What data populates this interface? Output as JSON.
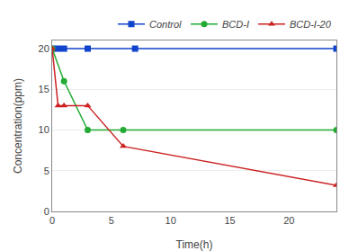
{
  "chart_data": {
    "type": "line",
    "xlabel": "Time(h)",
    "ylabel": "Concentration(ppm)",
    "xlim": [
      0,
      24
    ],
    "ylim": [
      0,
      21
    ],
    "xticks": [
      0,
      5,
      10,
      15,
      20
    ],
    "yticks": [
      0,
      5,
      10,
      15,
      20
    ],
    "grid": "y",
    "legend": "upper right",
    "series": [
      {
        "name": "Control",
        "color": "#1144cc",
        "marker": "square",
        "line_style": "solid",
        "x": [
          0,
          0.5,
          1,
          3,
          7,
          24
        ],
        "values": [
          20,
          20,
          20,
          20,
          20,
          20
        ]
      },
      {
        "name": "BCD-I",
        "color": "#22aa33",
        "marker": "circle",
        "line_style": "solid",
        "x": [
          0,
          1,
          3,
          6,
          24
        ],
        "values": [
          20,
          16,
          10,
          10,
          10
        ]
      },
      {
        "name": "BCD-I-20",
        "color": "#cc2222",
        "marker": "triangle-up",
        "line_style": "solid",
        "x": [
          0,
          0.5,
          1,
          3,
          6,
          24
        ],
        "values": [
          20,
          13,
          13,
          13,
          8,
          3.2
        ]
      }
    ]
  }
}
